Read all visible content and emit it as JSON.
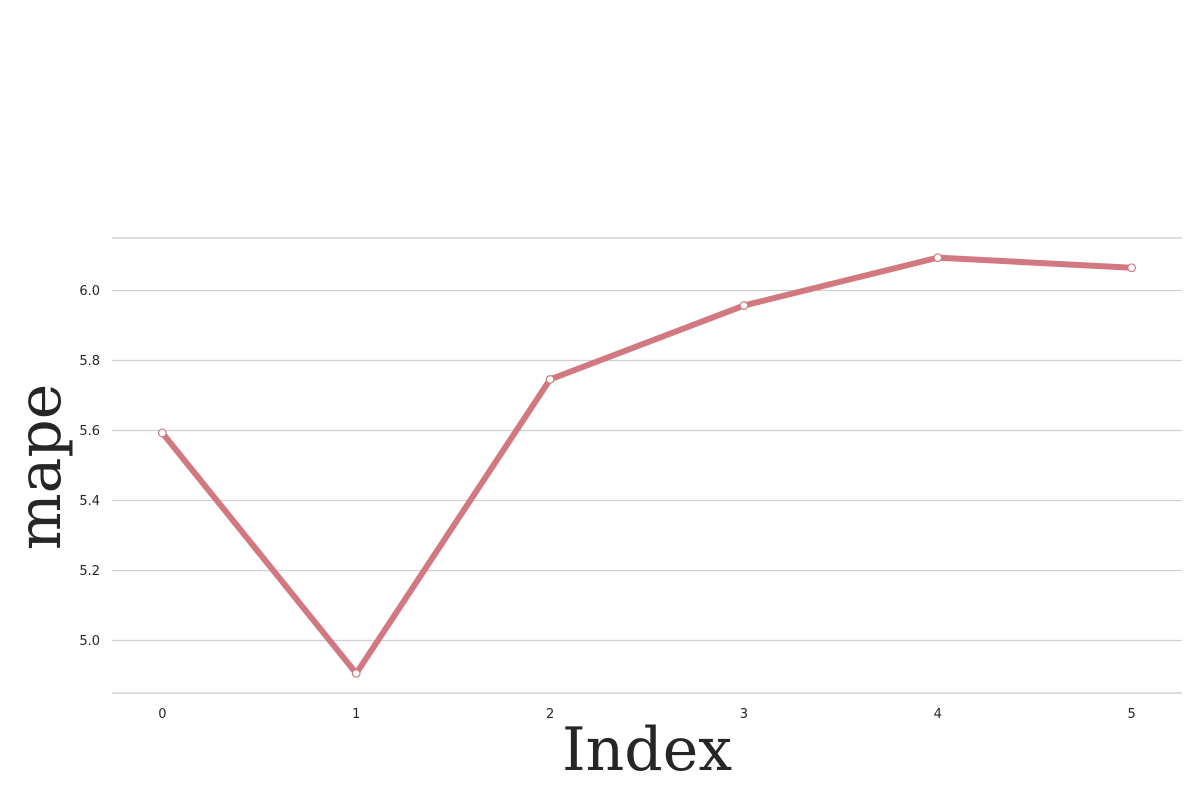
{
  "chart_data": {
    "type": "line",
    "title": "",
    "xlabel": "Index",
    "ylabel": "mape",
    "x": [
      0,
      1,
      2,
      3,
      4,
      5
    ],
    "series": [
      {
        "values": [
          5.593,
          4.906,
          5.746,
          5.957,
          6.094,
          6.065
        ]
      }
    ],
    "xticks": [
      "0",
      "1",
      "2",
      "3",
      "4",
      "5"
    ],
    "yticks": [
      "5.0",
      "5.2",
      "5.4",
      "5.6",
      "5.8",
      "6.0"
    ],
    "ylim": [
      4.85,
      6.15
    ],
    "xlim": [
      -0.26,
      5.26
    ],
    "grid": true,
    "legend": false,
    "colors": {
      "line": "#d17880",
      "marker_fill": "#ffffff",
      "grid": "#d0d0d0",
      "text": "#262626"
    }
  }
}
